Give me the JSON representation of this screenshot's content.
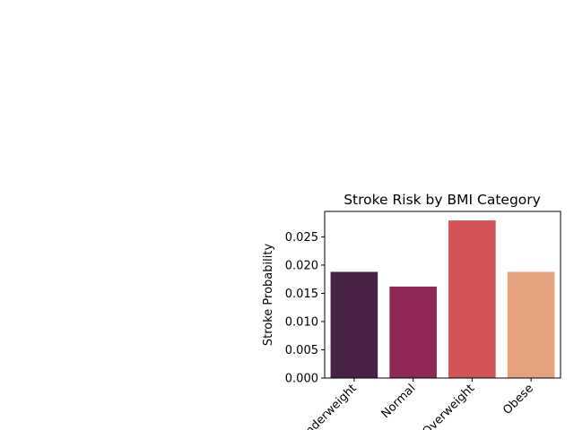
{
  "chart_data": {
    "type": "bar",
    "title": "Stroke Risk by BMI Category",
    "xlabel": "",
    "ylabel": "Stroke Probability",
    "categories": [
      "Underweight",
      "Normal",
      "Overweight",
      "Obese"
    ],
    "values": [
      0.0188,
      0.0162,
      0.0279,
      0.0188
    ],
    "colors": [
      "#482344",
      "#8f2857",
      "#d25356",
      "#e6a17f"
    ],
    "ylim": [
      0,
      0.0295
    ],
    "yticks": [
      "0.000",
      "0.005",
      "0.010",
      "0.015",
      "0.020",
      "0.025"
    ],
    "grid": false,
    "x_tick_rotation": 45
  }
}
